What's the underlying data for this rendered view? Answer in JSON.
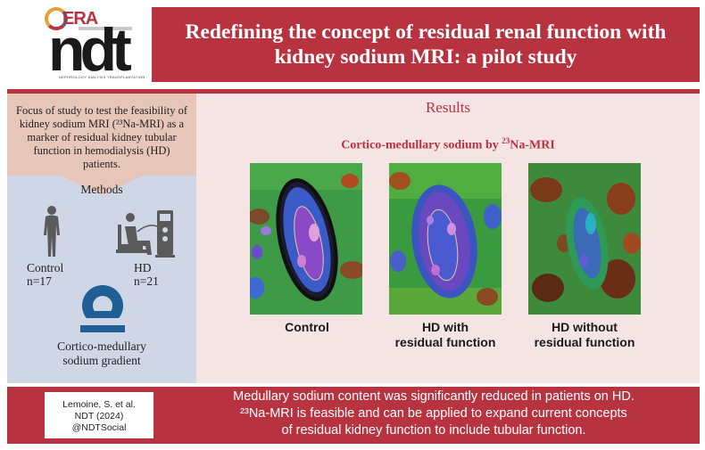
{
  "logo": {
    "era": "ERA",
    "ndt": "ndt",
    "tagline": "NEPHROLOGY DIALYSIS TRANSPLANTATION"
  },
  "header": {
    "title": "Redefining the concept of residual renal function with kidney sodium MRI: a pilot study"
  },
  "left": {
    "focus_text": "Focus of study to test the feasibility of kidney sodium MRI (²³Na-MRI) as a marker of residual kidney tubular function in hemodialysis (HD) patients.",
    "methods_label": "Methods",
    "control_label": "Control",
    "control_n": "n=17",
    "hd_label": "HD",
    "hd_n": "n=21",
    "gradient_line1": "Cortico-medullary",
    "gradient_line2": "sodium gradient"
  },
  "results": {
    "title": "Results",
    "subtitle_pre": "Cortico-medullary sodium by ",
    "subtitle_sup": "23",
    "subtitle_post": "Na-MRI",
    "images": [
      {
        "line1": "Control",
        "line2": ""
      },
      {
        "line1": "HD with",
        "line2": "residual function"
      },
      {
        "line1": "HD without",
        "line2": "residual function"
      }
    ]
  },
  "footer": {
    "citation_line1": "Lemoine, S. et al.",
    "citation_line2": "NDT (2024)",
    "citation_line3": "@NDTSocial",
    "conclusion_line1": "Medullary sodium content was significantly reduced in patients on HD.",
    "conclusion_line2": "²³Na-MRI is feasible and can be applied to expand current concepts",
    "conclusion_line3": "of residual kidney function to include tubular function."
  },
  "colors": {
    "brand_red": "#b73340",
    "left_panel_blue": "#cfd6e6",
    "focus_peach": "#e6c6b8",
    "results_pink": "#f4e4e4"
  }
}
